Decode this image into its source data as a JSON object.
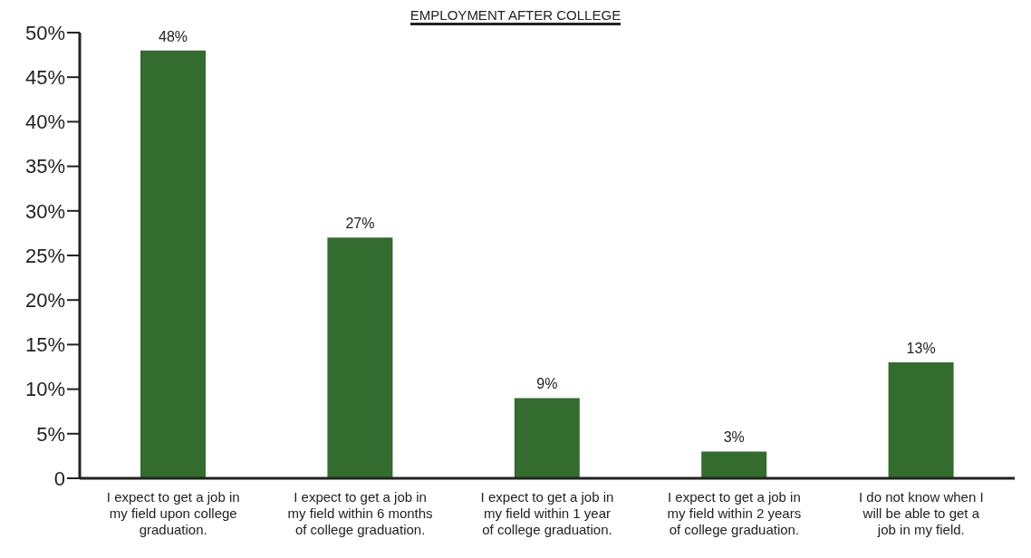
{
  "chart_data": {
    "type": "bar",
    "title": "EMPLOYMENT AFTER COLLEGE",
    "categories": [
      "I expect to get a job in my field upon college graduation.",
      "I expect to get a job in my field within 6 months of college graduation.",
      "I expect to get a job in my field within 1 year of college graduation.",
      "I expect to get a job in my field within 2 years of college graduation.",
      "I do not know when I will be able to get a job in my field."
    ],
    "values": [
      48,
      27,
      9,
      3,
      13
    ],
    "color": "#346b2f",
    "ylim": [
      0,
      50
    ],
    "yticks": [
      {
        "value": 0,
        "label": "0"
      },
      {
        "value": 5,
        "label": "5%"
      },
      {
        "value": 10,
        "label": "10%"
      },
      {
        "value": 15,
        "label": "15%"
      },
      {
        "value": 20,
        "label": "20%"
      },
      {
        "value": 25,
        "label": "25%"
      },
      {
        "value": 30,
        "label": "30%"
      },
      {
        "value": 35,
        "label": "35%"
      },
      {
        "value": 40,
        "label": "40%"
      },
      {
        "value": 45,
        "label": "45%"
      },
      {
        "value": 50,
        "label": "50%"
      }
    ],
    "value_labels": [
      "48%",
      "27%",
      "9%",
      "3%",
      "13%"
    ],
    "grid": false,
    "legend": false
  }
}
